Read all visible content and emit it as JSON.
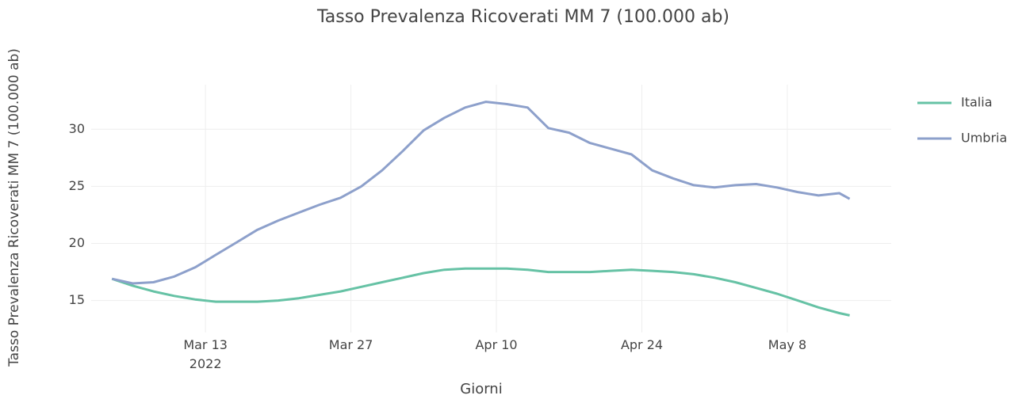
{
  "chart_data": {
    "type": "line",
    "title": "Tasso Prevalenza Ricoverati MM 7 (100.000 ab)",
    "x_label": "Giorni",
    "y_label": "Tasso Prevalenza Ricoverati MM 7 (100.000 ab)",
    "x": [
      "2022-03-04",
      "2022-03-06",
      "2022-03-08",
      "2022-03-10",
      "2022-03-12",
      "2022-03-14",
      "2022-03-16",
      "2022-03-18",
      "2022-03-20",
      "2022-03-22",
      "2022-03-24",
      "2022-03-26",
      "2022-03-28",
      "2022-03-30",
      "2022-04-01",
      "2022-04-03",
      "2022-04-05",
      "2022-04-07",
      "2022-04-09",
      "2022-04-11",
      "2022-04-13",
      "2022-04-15",
      "2022-04-17",
      "2022-04-19",
      "2022-04-21",
      "2022-04-23",
      "2022-04-25",
      "2022-04-27",
      "2022-04-29",
      "2022-05-01",
      "2022-05-03",
      "2022-05-05",
      "2022-05-07",
      "2022-05-09",
      "2022-05-11",
      "2022-05-13",
      "2022-05-14"
    ],
    "series": [
      {
        "name": "Italia",
        "color": "#66c2a5",
        "values": [
          16.9,
          16.3,
          15.8,
          15.4,
          15.1,
          14.9,
          14.9,
          14.9,
          15.0,
          15.2,
          15.5,
          15.8,
          16.2,
          16.6,
          17.0,
          17.4,
          17.7,
          17.8,
          17.8,
          17.8,
          17.7,
          17.5,
          17.5,
          17.5,
          17.6,
          17.7,
          17.6,
          17.5,
          17.3,
          17.0,
          16.6,
          16.1,
          15.6,
          15.0,
          14.4,
          13.9,
          13.7
        ]
      },
      {
        "name": "Umbria",
        "color": "#8da0cb",
        "values": [
          16.9,
          16.5,
          16.6,
          17.1,
          17.9,
          19.0,
          20.1,
          21.2,
          22.0,
          22.7,
          23.4,
          24.0,
          25.0,
          26.4,
          28.1,
          29.9,
          31.0,
          31.9,
          32.4,
          32.2,
          31.9,
          30.1,
          29.7,
          28.8,
          28.3,
          27.8,
          26.4,
          25.7,
          25.1,
          24.9,
          25.1,
          25.2,
          24.9,
          24.5,
          24.2,
          24.4,
          23.9
        ]
      }
    ],
    "xlim": [
      "2022-03-02",
      "2022-05-18"
    ],
    "xticks": [
      {
        "value": "2022-03-13",
        "label": "Mar 13\n2022"
      },
      {
        "value": "2022-03-27",
        "label": "Mar 27"
      },
      {
        "value": "2022-04-10",
        "label": "Apr 10"
      },
      {
        "value": "2022-04-24",
        "label": "Apr 24"
      },
      {
        "value": "2022-05-08",
        "label": "May 8"
      }
    ],
    "ylim": [
      12.2,
      33.9
    ],
    "yticks": [
      15,
      20,
      25,
      30
    ],
    "grid": true,
    "legend": "right"
  }
}
